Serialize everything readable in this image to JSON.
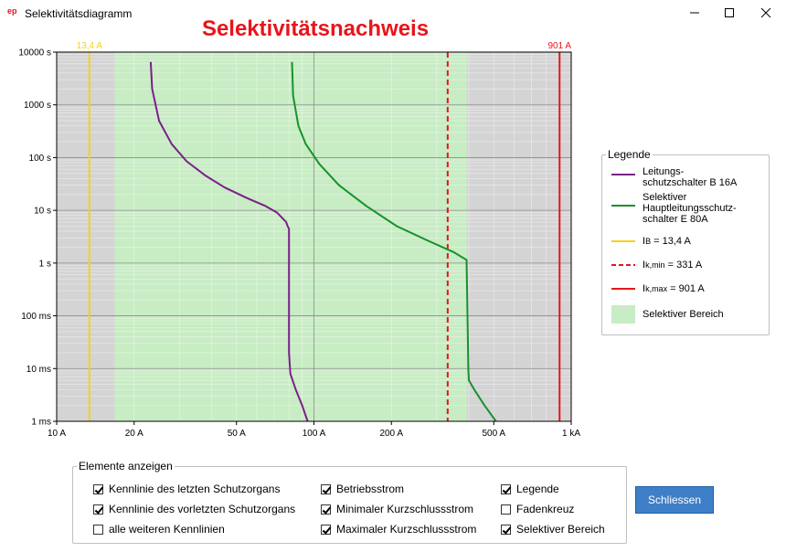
{
  "window": {
    "title": "Selektivitätsdiagramm"
  },
  "chart_data": {
    "type": "line",
    "title": "Selektivitätsnachweis",
    "xscale": "log",
    "yscale": "log",
    "xlim": [
      10,
      1000
    ],
    "ylim": [
      0.001,
      10000
    ],
    "x_ticks": [
      {
        "value": 10,
        "label": "10 A"
      },
      {
        "value": 20,
        "label": "20 A"
      },
      {
        "value": 50,
        "label": "50 A"
      },
      {
        "value": 100,
        "label": "100 A"
      },
      {
        "value": 200,
        "label": "200 A"
      },
      {
        "value": 500,
        "label": "500 A"
      },
      {
        "value": 1000,
        "label": "1 kA"
      }
    ],
    "y_ticks": [
      {
        "value": 10000,
        "label": "10000 s"
      },
      {
        "value": 1000,
        "label": "1000 s"
      },
      {
        "value": 100,
        "label": "100 s"
      },
      {
        "value": 10,
        "label": "10 s"
      },
      {
        "value": 1,
        "label": "1 s"
      },
      {
        "value": 0.1,
        "label": "100 ms"
      },
      {
        "value": 0.01,
        "label": "10 ms"
      },
      {
        "value": 0.001,
        "label": "1 ms"
      }
    ],
    "selective_range": [
      16.8,
      393
    ],
    "series": [
      {
        "name": "Leitungs-\nschutzschalter B 16A",
        "color": "#7b1f8a",
        "x": [
          23.2,
          23.5,
          25,
          28,
          32,
          38,
          45,
          55,
          65,
          72,
          78,
          79,
          80,
          80,
          81,
          85,
          90,
          94.5
        ],
        "y": [
          6500,
          2000,
          500,
          180,
          85,
          45,
          27,
          17,
          12,
          9,
          6,
          5,
          4.5,
          0.02,
          0.008,
          0.004,
          0.002,
          0.001
        ]
      },
      {
        "name": "Selektiver\nHauptleitungsschutz-\nschalter E 80A",
        "color": "#18912b",
        "x": [
          82.2,
          83,
          87,
          93,
          105,
          125,
          160,
          210,
          280,
          350,
          392,
          396,
          398,
          400,
          420,
          460,
          510
        ],
        "y": [
          6500,
          1500,
          400,
          180,
          75,
          30,
          12,
          5,
          2.6,
          1.6,
          1.15,
          0.05,
          0.01,
          0.006,
          0.004,
          0.002,
          0.001
        ]
      }
    ],
    "vlines": [
      {
        "name": "IB = 13,4 A",
        "value": 13.4,
        "label": "13,4 A",
        "color": "#f5d21b",
        "dash": false
      },
      {
        "name": "Ik,min = 331 A",
        "value": 331,
        "label": "",
        "color": "#e8141b",
        "dash": true
      },
      {
        "name": "Ik,max = 901 A",
        "value": 901,
        "label": "901 A",
        "color": "#e8141b",
        "dash": false
      }
    ]
  },
  "legend": {
    "title": "Legende",
    "items": [
      {
        "label": "Leitungs-\nschutzschalter B 16A"
      },
      {
        "label": "Selektiver\nHauptleitungsschutz-\nschalter E 80A"
      },
      {
        "main": "I",
        "sub": "B",
        "rest": " = 13,4 A"
      },
      {
        "main": "I",
        "sub": "k,min",
        "rest": " = 331 A"
      },
      {
        "main": "I",
        "sub": "k,max",
        "rest": " = 901 A"
      },
      {
        "label": "Selektiver Bereich"
      }
    ],
    "colors": {
      "lss": "#7b1f8a",
      "hls": "#18912b",
      "ib": "#f5d21b",
      "ik": "#e8141b",
      "selective": "#c8ecc4"
    }
  },
  "elements": {
    "title": "Elemente anzeigen",
    "checkboxes": [
      {
        "label": "Kennlinie des letzten Schutzorgans",
        "checked": true
      },
      {
        "label": "Kennlinie des vorletzten Schutzorgans",
        "checked": true
      },
      {
        "label": "alle weiteren Kennlinien",
        "checked": false
      },
      {
        "label": "Betriebsstrom",
        "checked": true
      },
      {
        "label": "Minimaler Kurzschlussstrom",
        "checked": true
      },
      {
        "label": "Maximaler Kurzschlussstrom",
        "checked": true
      },
      {
        "label": "Legende",
        "checked": true
      },
      {
        "label": "Fadenkreuz",
        "checked": false
      },
      {
        "label": "Selektiver Bereich",
        "checked": true
      }
    ]
  },
  "close_button": {
    "label": "Schliessen"
  }
}
